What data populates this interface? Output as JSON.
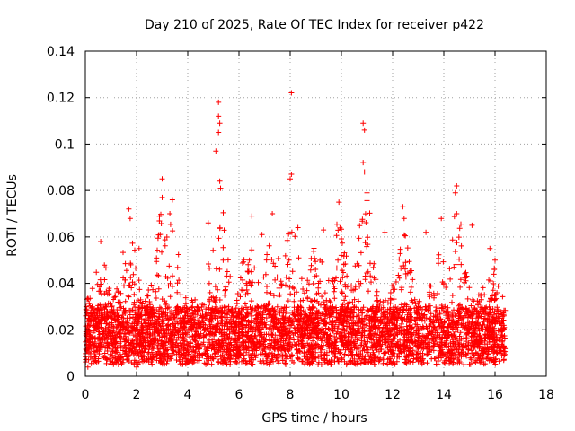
{
  "chart_data": {
    "type": "scatter",
    "title": "Day 210 of 2025, Rate Of TEC Index for receiver p422",
    "xlabel": "GPS time / hours",
    "ylabel": "ROTI / TECUs",
    "xlim": [
      0,
      18
    ],
    "ylim": [
      0,
      0.14
    ],
    "x_ticks": [
      0,
      2,
      4,
      6,
      8,
      10,
      12,
      14,
      16,
      18
    ],
    "y_ticks": [
      0,
      0.02,
      0.04,
      0.06,
      0.08,
      0.1,
      0.12,
      0.14
    ],
    "x_tick_labels": [
      "0",
      "2",
      "4",
      "6",
      "8",
      "10",
      "12",
      "14",
      "16",
      "18"
    ],
    "y_tick_labels": [
      "0",
      "0.02",
      "0.04",
      "0.06",
      "0.08",
      "0.1",
      "0.12",
      "0.14"
    ],
    "grid": true,
    "marker": "+",
    "marker_color": "#ff0000",
    "series": [
      {
        "name": "ROTI",
        "x_range": [
          0.0,
          16.4
        ],
        "dense_band": [
          0.005,
          0.03
        ],
        "notable_points": [
          [
            5.2,
            0.118
          ],
          [
            5.2,
            0.112
          ],
          [
            5.25,
            0.109
          ],
          [
            5.2,
            0.105
          ],
          [
            5.1,
            0.097
          ],
          [
            5.25,
            0.084
          ],
          [
            8.05,
            0.122
          ],
          [
            8.05,
            0.087
          ],
          [
            8.0,
            0.085
          ],
          [
            10.85,
            0.109
          ],
          [
            10.9,
            0.106
          ],
          [
            10.85,
            0.092
          ],
          [
            10.9,
            0.088
          ],
          [
            11.0,
            0.079
          ],
          [
            3.0,
            0.085
          ],
          [
            3.0,
            0.077
          ],
          [
            3.4,
            0.076
          ],
          [
            3.3,
            0.07
          ],
          [
            14.5,
            0.082
          ],
          [
            14.45,
            0.079
          ],
          [
            14.5,
            0.07
          ],
          [
            1.7,
            0.072
          ],
          [
            1.75,
            0.068
          ],
          [
            6.5,
            0.069
          ],
          [
            7.3,
            0.07
          ],
          [
            9.9,
            0.075
          ],
          [
            12.4,
            0.073
          ],
          [
            12.45,
            0.068
          ],
          [
            13.9,
            0.068
          ],
          [
            15.1,
            0.065
          ],
          [
            0.6,
            0.058
          ],
          [
            2.1,
            0.055
          ],
          [
            4.8,
            0.066
          ],
          [
            6.9,
            0.061
          ],
          [
            8.3,
            0.064
          ],
          [
            9.3,
            0.063
          ],
          [
            11.7,
            0.062
          ],
          [
            13.3,
            0.062
          ],
          [
            15.8,
            0.055
          ],
          [
            16.0,
            0.05
          ],
          [
            0.1,
            0.004
          ],
          [
            2.0,
            0.004
          ],
          [
            4.0,
            0.006
          ],
          [
            10.2,
            0.005
          ],
          [
            16.35,
            0.01
          ]
        ]
      }
    ]
  }
}
